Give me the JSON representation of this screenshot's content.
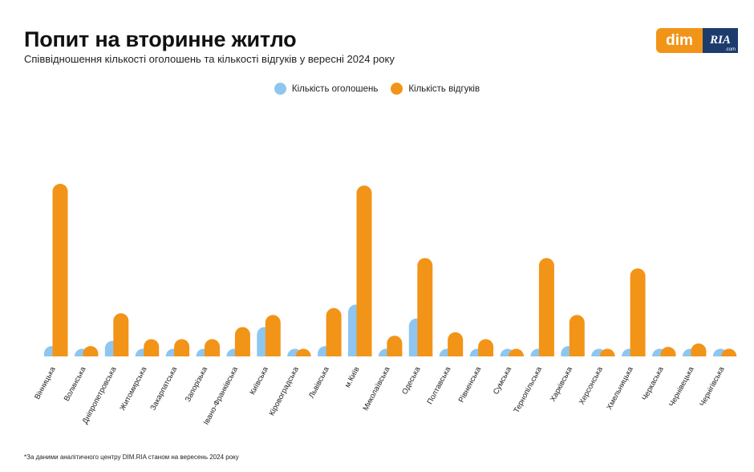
{
  "header": {
    "title": "Попит на вторинне житло",
    "subtitle": "Співвідношення кількості оголошень та кількості відгуків у вересні 2024 року"
  },
  "logo": {
    "dim_text": "dim",
    "ria_text": "RIA",
    "ria_domain": ".com"
  },
  "footnote": "*За даними аналітичного центру DIM.RIA станом на вересень 2024 року",
  "colors": {
    "listings": "#8ec6f0",
    "responses": "#f29418",
    "logo_orange": "#f29418",
    "logo_navy": "#1c3c6e"
  },
  "chart_data": {
    "type": "bar",
    "title": "Попит на вторинне житло",
    "subtitle": "Співвідношення кількості оголошень та кількості відгуків у вересні 2024 року",
    "xlabel": "",
    "ylabel": "",
    "y_axis_shown": false,
    "grid": false,
    "legend_position": "top-center",
    "ylim": [
      0,
      100
    ],
    "categories": [
      "Вінницька",
      "Волинська",
      "Дніпропетровська",
      "Житомирська",
      "Закарпатська",
      "Запорізька",
      "Івано-Франківська",
      "Київська",
      "Кіровоградська",
      "Львівська",
      "м.Київ",
      "Миколаївська",
      "Одеська",
      "Полтавська",
      "Рівненська",
      "Сумська",
      "Тернопільська",
      "Харківська",
      "Херсонська",
      "Хмельницька",
      "Черкаська",
      "Чернівецька",
      "Чернігівська"
    ],
    "series": [
      {
        "name": "Кількість оголошень",
        "color": "#8ec6f0",
        "values": [
          6,
          1,
          9,
          1.5,
          1.5,
          2.5,
          4,
          17,
          0.5,
          6,
          30,
          1.5,
          22,
          2.5,
          2.5,
          0.5,
          3,
          6,
          0.5,
          4,
          0.5,
          1.5,
          1
        ]
      },
      {
        "name": "Кількість відгуків",
        "color": "#f29418",
        "values": [
          100,
          6,
          25,
          10,
          10,
          10,
          17,
          24,
          3,
          28,
          99,
          12,
          57,
          14,
          10,
          2.5,
          57,
          24,
          0.5,
          51,
          5.5,
          7.5,
          2.5
        ]
      }
    ]
  }
}
